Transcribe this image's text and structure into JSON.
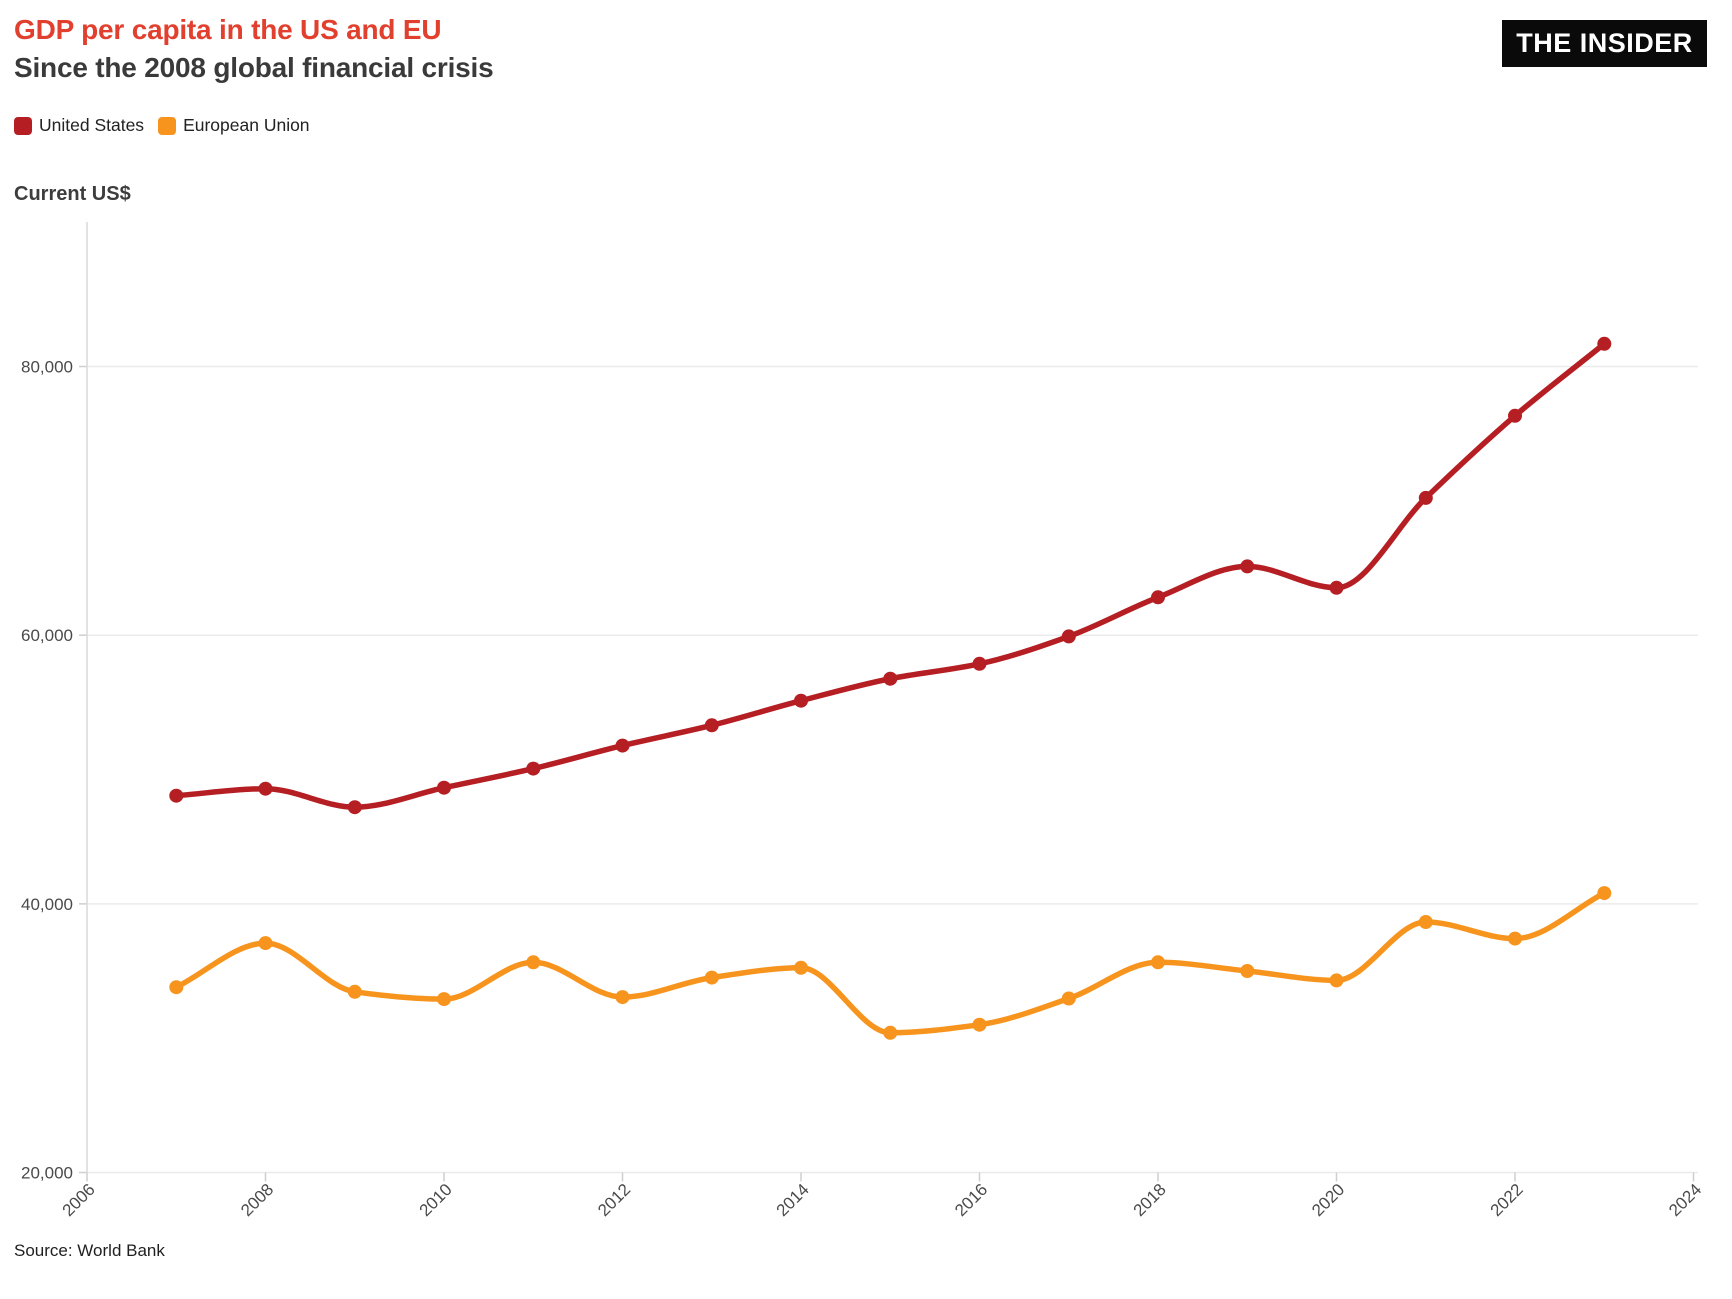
{
  "header": {
    "title": "GDP per capita in the US and EU",
    "subtitle": "Since the 2008 global financial crisis",
    "logo": "THE INSIDER"
  },
  "legend": [
    {
      "label": "United States",
      "color": "#b51f24"
    },
    {
      "label": "European Union",
      "color": "#f7941d"
    }
  ],
  "axis_title": "Current US$",
  "source": "Source: World Bank",
  "colors": {
    "title_red": "#e2402f",
    "subtitle_gray": "#3a3a3a",
    "us_line": "#b51f24",
    "eu_line": "#f7941d",
    "gridline": "#ebebeb",
    "axis_line": "#d9d9d9",
    "tick_mark": "#cfcfcf",
    "tick_text": "#4a4a4a",
    "background": "#ffffff"
  },
  "chart_data": {
    "type": "line",
    "title": "GDP per capita in the US and EU",
    "subtitle": "Since the 2008 global financial crisis",
    "xlabel": "",
    "ylabel": "Current US$",
    "x": [
      2007,
      2008,
      2009,
      2010,
      2011,
      2012,
      2013,
      2014,
      2015,
      2016,
      2017,
      2018,
      2019,
      2020,
      2021,
      2022,
      2023
    ],
    "series": [
      {
        "name": "United States",
        "color": "#b51f24",
        "values": [
          48050,
          48570,
          47195,
          48650,
          50066,
          51784,
          53291,
          55124,
          56763,
          57867,
          59908,
          62823,
          65120,
          63528,
          70219,
          76330,
          81695
        ]
      },
      {
        "name": "European Union",
        "color": "#f7941d",
        "values": [
          33795,
          37080,
          33450,
          32910,
          35650,
          33060,
          34510,
          35240,
          30400,
          31000,
          32950,
          35650,
          35000,
          34300,
          38650,
          37410,
          40800
        ]
      }
    ],
    "xlim": [
      2006,
      2024
    ],
    "ylim": [
      20000,
      90760
    ],
    "x_ticks": [
      2006,
      2008,
      2010,
      2012,
      2014,
      2016,
      2018,
      2020,
      2022,
      2024
    ],
    "x_tick_labels": [
      "2006",
      "2008",
      "2010",
      "2012",
      "2014",
      "2016",
      "2018",
      "2020",
      "2022",
      "2024"
    ],
    "y_ticks": [
      {
        "value": 20000,
        "label": "20,000"
      },
      {
        "value": 40000,
        "label": "40,000"
      },
      {
        "value": 60000,
        "label": "60,000"
      },
      {
        "value": 80000,
        "label": "80,000"
      }
    ],
    "grid": "horizontal",
    "curve": "monotone",
    "markers": true,
    "legend_position": "top-left",
    "source": "Source: World Bank"
  }
}
